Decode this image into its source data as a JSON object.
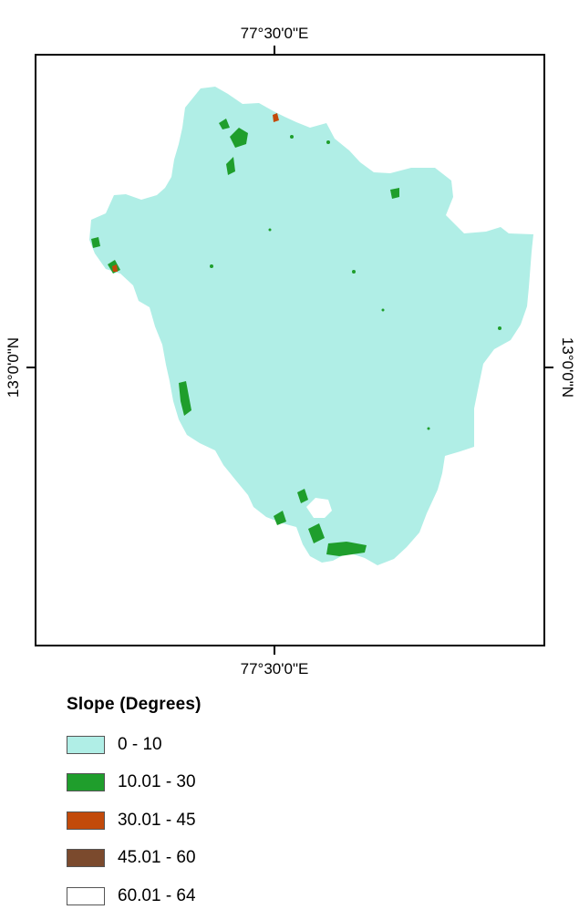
{
  "map": {
    "top_lon_label": "77°30'0\"E",
    "bottom_lon_label": "77°30'0\"E",
    "left_lat_label": "13°0'0\"N",
    "right_lat_label": "13°0'0\"N"
  },
  "legend": {
    "title": "Slope (Degrees)",
    "items": [
      {
        "label": "0 - 10",
        "color": "#b0eee6"
      },
      {
        "label": "10.01 - 30",
        "color": "#1f9e2c"
      },
      {
        "label": "30.01 - 45",
        "color": "#c24a0a"
      },
      {
        "label": "45.01 - 60",
        "color": "#7b4a2d"
      },
      {
        "label": "60.01 - 64",
        "color": "#ffffff"
      }
    ]
  }
}
